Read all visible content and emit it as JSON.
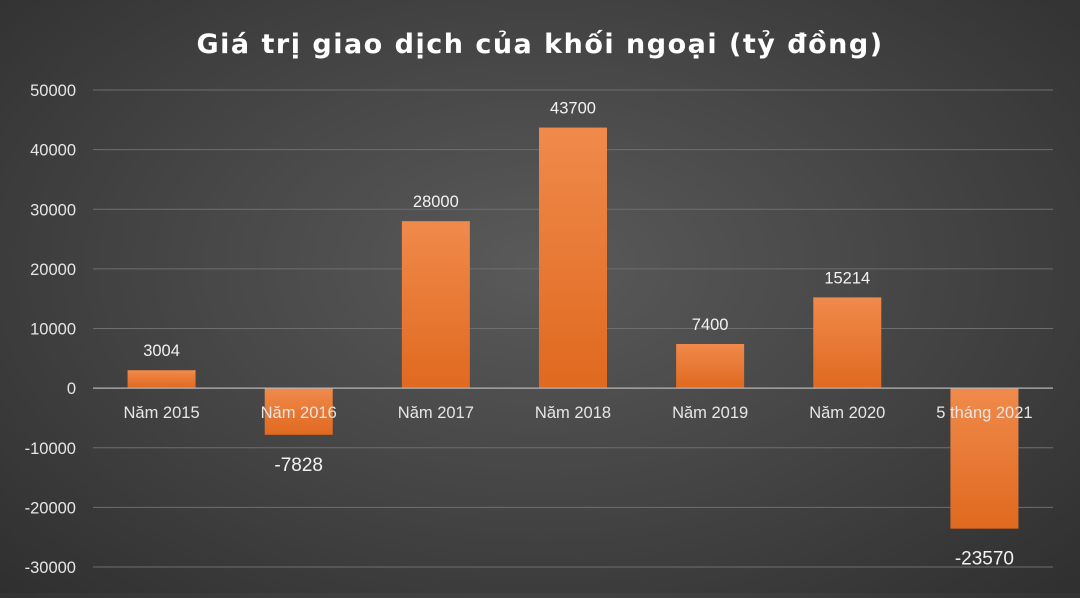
{
  "colors": {
    "bar_top": "#f08a4b",
    "bar_bottom": "#e0691f",
    "background": "#474747"
  },
  "chart_data": {
    "type": "bar",
    "title": "Giá trị giao dịch của khối ngoại (tỷ đồng)",
    "categories": [
      "Năm 2015",
      "Năm 2016",
      "Năm 2017",
      "Năm 2018",
      "Năm 2019",
      "Năm 2020",
      "5 tháng 2021"
    ],
    "values": [
      3004,
      -7828,
      28000,
      43700,
      7400,
      15214,
      -23570
    ],
    "data_labels": [
      "3004",
      "-7828",
      "28000",
      "43700",
      "7400",
      "15214",
      "-23570"
    ],
    "ylim": [
      -30000,
      50000
    ],
    "yticks": [
      50000,
      40000,
      30000,
      20000,
      10000,
      0,
      -10000,
      -20000,
      -30000
    ],
    "ytick_labels": [
      "50000",
      "40000",
      "30000",
      "20000",
      "10000",
      "0",
      "-10000",
      "-20000",
      "-30000"
    ],
    "xlabel": "",
    "ylabel": "",
    "grid": true,
    "legend": "none"
  }
}
